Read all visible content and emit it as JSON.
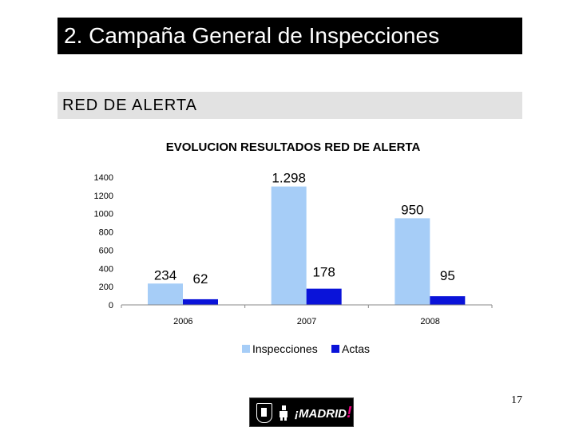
{
  "slide": {
    "title": "2. Campaña General de Inspecciones",
    "section": "RED DE ALERTA",
    "page_number": "17",
    "logo_text_open": "¡",
    "logo_text": "MADRID",
    "logo_text_close": "!"
  },
  "colors": {
    "title_bg": "#000000",
    "section_bg": "#e2e2e2",
    "inspecciones": "#a6cdf7",
    "actas": "#0a13d9"
  },
  "chart_data": {
    "type": "bar",
    "title": "EVOLUCION RESULTADOS RED DE ALERTA",
    "categories": [
      "2006",
      "2007",
      "2008"
    ],
    "series": [
      {
        "name": "Inspecciones",
        "values": [
          234,
          1298,
          950
        ],
        "labels": [
          "234",
          "1.298",
          "950"
        ],
        "color": "#a6cdf7"
      },
      {
        "name": "Actas",
        "values": [
          62,
          178,
          95
        ],
        "labels": [
          "62",
          "178",
          "95"
        ],
        "color": "#0a13d9"
      }
    ],
    "ylim": [
      0,
      1400
    ],
    "yticks": [
      "0",
      "200",
      "400",
      "600",
      "800",
      "1000",
      "1200",
      "1400"
    ],
    "grid": false,
    "legend": "bottom"
  }
}
